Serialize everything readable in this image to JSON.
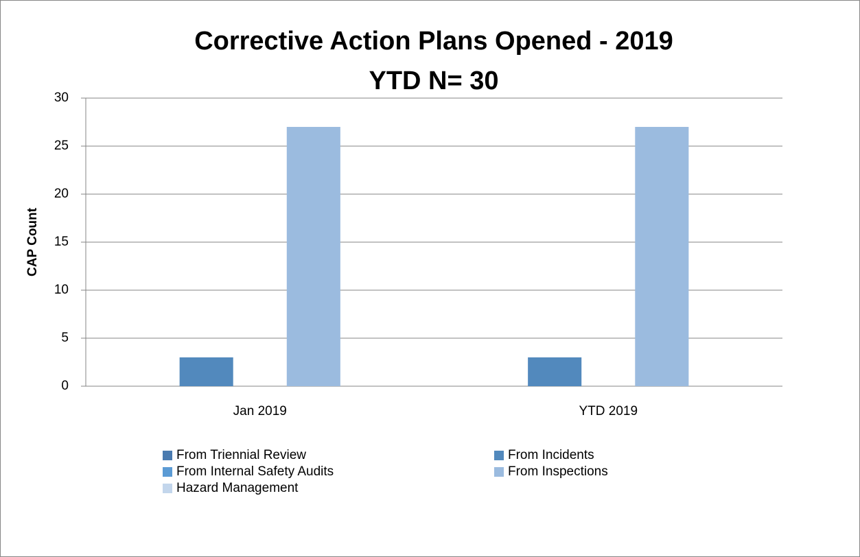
{
  "chart_data": {
    "type": "bar",
    "title": "Corrective Action Plans Opened - 2019",
    "subtitle": "YTD N= 30",
    "ylabel": "CAP Count",
    "categories": [
      "Jan 2019",
      "YTD 2019"
    ],
    "series": [
      {
        "name": "From Triennial Review",
        "color": "#4a7bb0",
        "values": [
          0,
          0
        ]
      },
      {
        "name": "From Incidents",
        "color": "#5289bd",
        "values": [
          3,
          3
        ]
      },
      {
        "name": "From Internal Safety Audits",
        "color": "#5b9bd5",
        "values": [
          0,
          0
        ]
      },
      {
        "name": "From Inspections",
        "color": "#9bbbdf",
        "values": [
          27,
          27
        ]
      },
      {
        "name": "Hazard Management",
        "color": "#c3d6ec",
        "values": [
          0,
          0
        ]
      }
    ],
    "ylim": [
      0,
      30
    ],
    "yticks": [
      0,
      5,
      10,
      15,
      20,
      25,
      30
    ],
    "grid": true,
    "legend": "bottom"
  }
}
